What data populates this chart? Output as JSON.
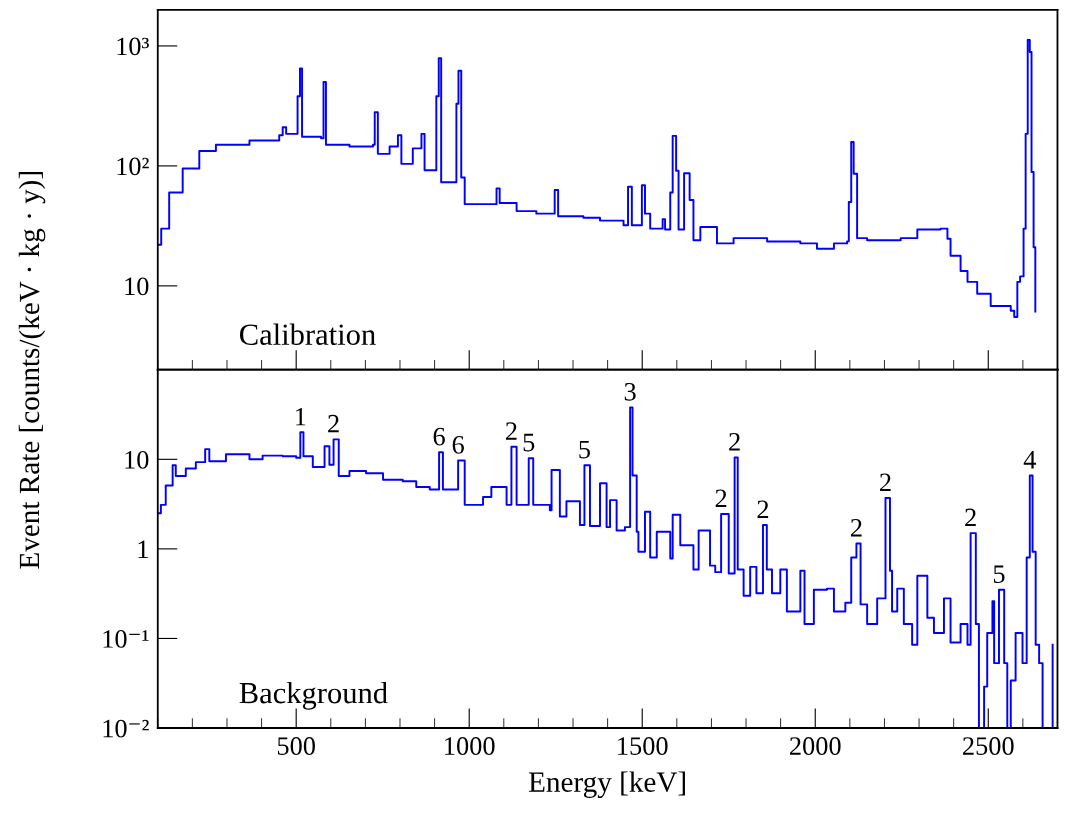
{
  "chart_data": [
    {
      "type": "step",
      "ylabel": "Event Rate [counts/(keV · kg · y)]",
      "log": true,
      "xlim": [
        100,
        2700
      ],
      "xticks": [
        500,
        1000,
        1500,
        2000,
        2500
      ],
      "ylim": [
        2,
        2000
      ],
      "yticks": [
        10,
        {
          "value": 100,
          "label": "10²"
        },
        {
          "value": 1000,
          "label": "10³"
        }
      ],
      "tick_labels": "y",
      "grid": false,
      "annotations": [
        "Calibration"
      ],
      "series": [
        {
          "color": "#0000ff",
          "x": [
            100,
            110,
            133,
            172,
            220,
            268,
            365,
            451,
            461,
            471,
            504,
            511,
            517,
            572,
            579,
            586,
            654,
            722,
            727,
            736,
            770,
            794,
            804,
            837,
            862,
            871,
            905,
            912,
            919,
            963,
            969,
            977,
            987,
            1040,
            1079,
            1088,
            1137,
            1194,
            1247,
            1257,
            1330,
            1378,
            1446,
            1459,
            1470,
            1499,
            1508,
            1523,
            1559,
            1566,
            1581,
            1588,
            1598,
            1605,
            1621,
            1637,
            1648,
            1668,
            1716,
            1764,
            1861,
            1957,
            2005,
            2054,
            2092,
            2097,
            2104,
            2111,
            2121,
            2150,
            2247,
            2295,
            2362,
            2382,
            2391,
            2420,
            2440,
            2468,
            2507,
            2565,
            2575,
            2584,
            2592,
            2602,
            2608,
            2614,
            2620,
            2625,
            2631,
            2636
          ],
          "values": [
            22,
            30,
            60,
            95,
            133,
            150,
            163,
            180,
            210,
            185,
            380,
            650,
            175,
            170,
            500,
            150,
            145,
            150,
            280,
            126,
            145,
            180,
            104,
            140,
            185,
            92,
            380,
            790,
            73,
            330,
            620,
            80,
            48,
            48,
            65,
            49,
            42,
            40,
            63,
            38,
            37,
            35,
            32,
            67,
            32,
            69,
            40,
            30,
            36,
            29.5,
            60,
            178,
            91,
            29.5,
            87,
            52,
            24,
            31,
            22.6,
            25,
            23.4,
            22.6,
            20.4,
            22.6,
            23.5,
            50,
            158,
            86,
            25,
            24,
            25,
            29.5,
            30,
            24.7,
            17.8,
            13.3,
            10.8,
            8.6,
            6.8,
            6.2,
            5.5,
            10.8,
            12,
            30,
            185,
            1120,
            890,
            89,
            21,
            6.1
          ]
        }
      ]
    },
    {
      "type": "step",
      "xlabel": "Energy [keV]",
      "log": true,
      "xlim": [
        100,
        2700
      ],
      "xticks": [
        500,
        1000,
        1500,
        2000,
        2500
      ],
      "ylim": [
        0.01,
        100
      ],
      "yticks": [
        {
          "value": 0.01,
          "label": "10⁻²"
        },
        {
          "value": 0.1,
          "label": "10⁻¹"
        },
        1,
        10
      ],
      "grid": false,
      "annotations": [
        "Background",
        {
          "text": "1",
          "x": 512,
          "y": 20
        },
        {
          "text": "2",
          "x": 608,
          "y": 16.7
        },
        {
          "text": "6",
          "x": 913,
          "y": 12
        },
        {
          "text": "6",
          "x": 968,
          "y": 9.7
        },
        {
          "text": "2",
          "x": 1122,
          "y": 13.8
        },
        {
          "text": "5",
          "x": 1172,
          "y": 10.3
        },
        {
          "text": "5",
          "x": 1333,
          "y": 8.6
        },
        {
          "text": "3",
          "x": 1465,
          "y": 38
        },
        {
          "text": "2",
          "x": 1728,
          "y": 2.45
        },
        {
          "text": "2",
          "x": 1767,
          "y": 10.5
        },
        {
          "text": "2",
          "x": 1849,
          "y": 1.85
        },
        {
          "text": "2",
          "x": 2119,
          "y": 1.15
        },
        {
          "text": "2",
          "x": 2203,
          "y": 3.7
        },
        {
          "text": "2",
          "x": 2449,
          "y": 1.5
        },
        {
          "text": "5",
          "x": 2531,
          "y": 0.35
        },
        {
          "text": "4",
          "x": 2620,
          "y": 6.6
        }
      ],
      "series": [
        {
          "color": "#0000ff",
          "x": [
            100,
            109,
            123,
            143,
            152,
            181,
            210,
            237,
            249,
            297,
            365,
            403,
            461,
            500,
            512,
            521,
            548,
            582,
            596,
            608,
            623,
            654,
            702,
            751,
            808,
            847,
            886,
            913,
            924,
            968,
            987,
            1040,
            1064,
            1108,
            1122,
            1137,
            1172,
            1185,
            1233,
            1238,
            1262,
            1281,
            1320,
            1333,
            1349,
            1378,
            1397,
            1407,
            1426,
            1450,
            1465,
            1472,
            1484,
            1489,
            1508,
            1523,
            1542,
            1581,
            1588,
            1610,
            1648,
            1663,
            1696,
            1711,
            1728,
            1750,
            1767,
            1776,
            1793,
            1812,
            1830,
            1849,
            1860,
            1875,
            1899,
            1918,
            1957,
            1969,
            1996,
            2034,
            2054,
            2087,
            2104,
            2119,
            2131,
            2150,
            2179,
            2203,
            2216,
            2222,
            2237,
            2256,
            2280,
            2295,
            2324,
            2343,
            2372,
            2391,
            2420,
            2440,
            2449,
            2464,
            2473,
            2488,
            2497,
            2512,
            2517,
            2531,
            2546,
            2555,
            2565,
            2579,
            2599,
            2611,
            2620,
            2628,
            2637,
            2647,
            2657,
            2686
          ],
          "values": [
            2.5,
            3.1,
            5.1,
            8.6,
            6.5,
            7.9,
            9.3,
            13,
            9.5,
            11.4,
            10,
            11,
            10.8,
            10.4,
            20,
            10.8,
            8.2,
            14,
            8.7,
            16.7,
            6.5,
            7.4,
            7,
            5.9,
            5.7,
            4.9,
            4.6,
            12,
            4.6,
            9.7,
            3.1,
            3.8,
            4.9,
            3.1,
            13.8,
            3.1,
            10.3,
            3.1,
            2.7,
            7.6,
            2.3,
            3.4,
            1.85,
            8.6,
            1.8,
            5.4,
            1.75,
            3.5,
            1.6,
            1.75,
            38,
            6.6,
            1.55,
            0.93,
            2.6,
            0.8,
            1.55,
            0.78,
            2.4,
            1.1,
            0.59,
            1.6,
            0.65,
            0.55,
            2.45,
            0.53,
            10.5,
            0.59,
            0.3,
            0.63,
            0.32,
            1.85,
            0.59,
            0.32,
            0.59,
            0.2,
            0.57,
            0.145,
            0.35,
            0.36,
            0.2,
            0.25,
            0.8,
            1.15,
            0.24,
            0.145,
            0.28,
            3.7,
            0.57,
            0.2,
            0.36,
            0.145,
            0.085,
            0.5,
            0.17,
            0.115,
            0.28,
            0.09,
            0.145,
            0.085,
            1.5,
            0.145,
            0.01,
            0.029,
            0.115,
            0.26,
            0.053,
            0.35,
            0.053,
            0.01,
            0.034,
            0.115,
            0.053,
            0.8,
            6.6,
            0.93,
            0.085,
            0.053,
            0.01,
            0.085
          ]
        }
      ]
    }
  ]
}
